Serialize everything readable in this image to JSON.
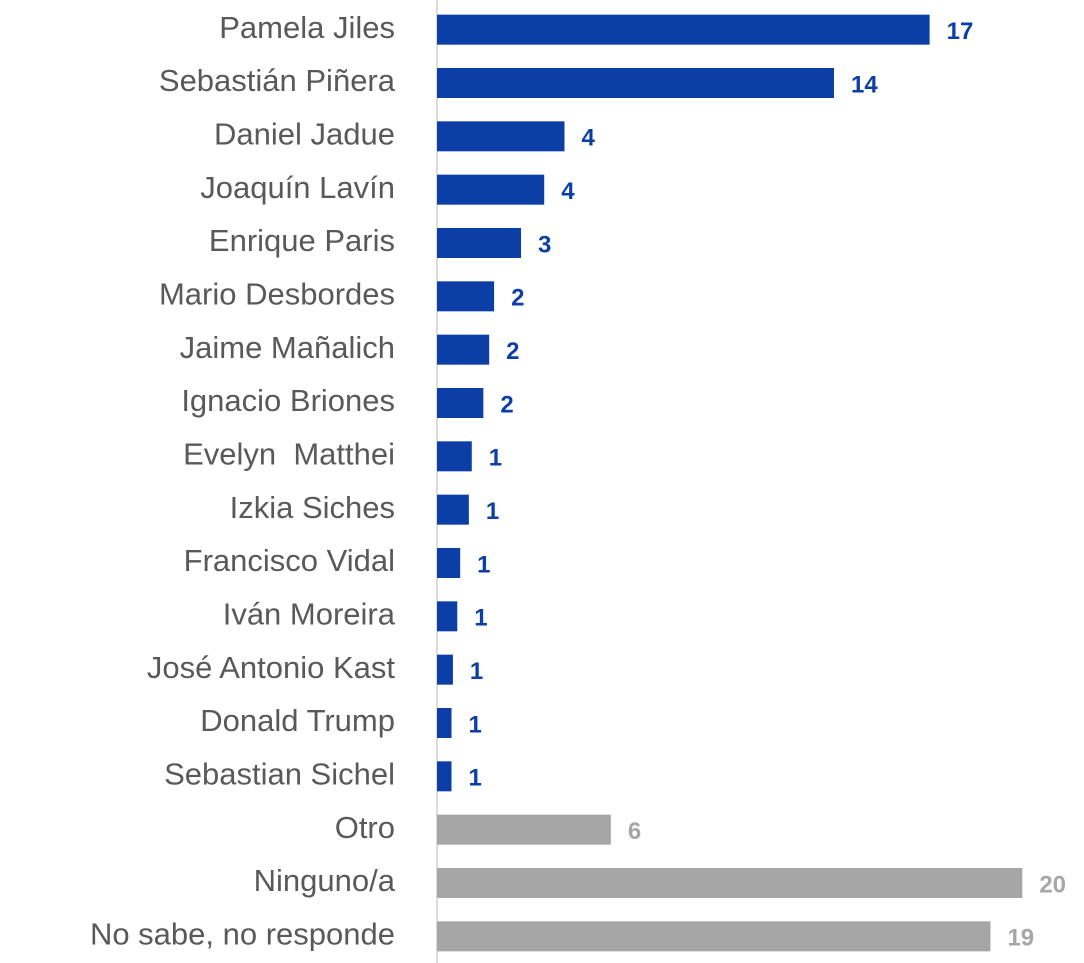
{
  "chart_data": {
    "type": "hbar",
    "categories": [
      "Pamela Jiles",
      "Sebastián Piñera",
      "Daniel Jadue",
      "Joaquín Lavín",
      "Enrique Paris",
      "Mario Desbordes",
      "Jaime Mañalich",
      "Ignacio Briones",
      "Evelyn  Matthei",
      "Izkia Siches",
      "Francisco Vidal",
      "Iván Moreira",
      "José Antonio Kast",
      "Donald Trump",
      "Sebastian Sichel",
      "Otro",
      "Ninguno/a",
      "No sabe, no responde"
    ],
    "values": [
      17,
      13.7,
      4.4,
      3.7,
      2.9,
      1.97,
      1.8,
      1.6,
      1.2,
      1.1,
      0.8,
      0.7,
      0.55,
      0.5,
      0.5,
      6,
      20.2,
      19.1
    ],
    "value_labels": [
      "17",
      "14",
      "4",
      "4",
      "3",
      "2",
      "2",
      "2",
      "1",
      "1",
      "1",
      "1",
      "1",
      "1",
      "1",
      "6",
      "20",
      "19"
    ],
    "colors": [
      "#0b3fa5",
      "#0b3fa5",
      "#0b3fa5",
      "#0b3fa5",
      "#0b3fa5",
      "#0b3fa5",
      "#0b3fa5",
      "#0b3fa5",
      "#0b3fa5",
      "#0b3fa5",
      "#0b3fa5",
      "#0b3fa5",
      "#0b3fa5",
      "#0b3fa5",
      "#0b3fa5",
      "#a6a6a6",
      "#a6a6a6",
      "#a6a6a6"
    ],
    "xlim": [
      0,
      21.5
    ]
  }
}
